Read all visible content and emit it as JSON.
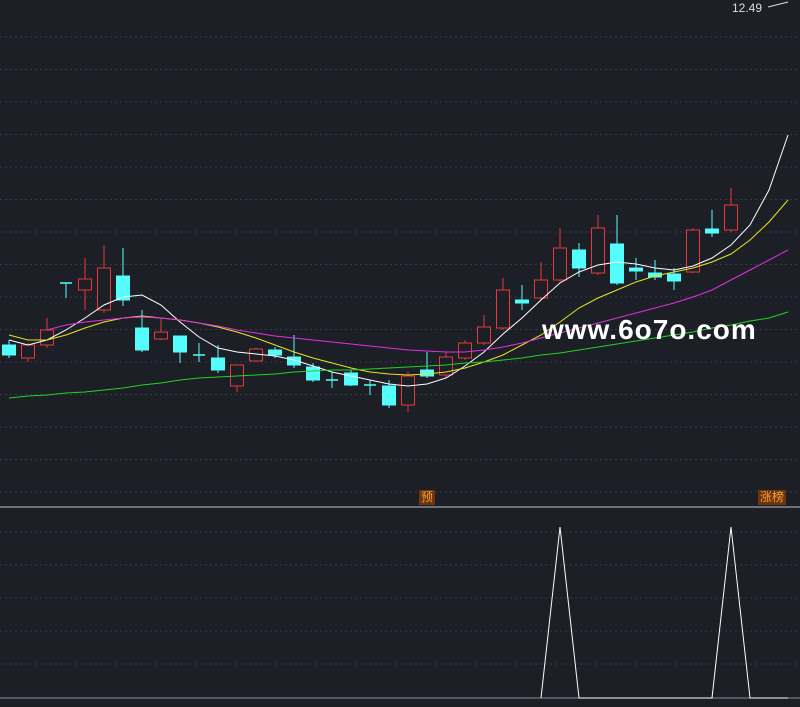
{
  "chart_data": [
    {
      "type": "candlestick",
      "ylim": [
        7.5,
        12.5
      ],
      "up_color": "#e8383b",
      "down_color": "#54fcfc",
      "open": [
        9.05,
        8.92,
        9.05,
        9.67,
        9.6,
        9.4,
        9.74,
        9.22,
        9.11,
        9.14,
        8.95,
        8.92,
        8.64,
        8.89,
        9.0,
        8.93,
        8.83,
        8.7,
        8.77,
        8.65,
        8.64,
        8.45,
        8.8,
        8.75,
        8.92,
        9.07,
        9.22,
        9.5,
        9.52,
        9.7,
        10.0,
        9.77,
        10.06,
        9.82,
        9.77,
        9.76,
        9.78,
        10.21,
        10.2,
        null,
        null,
        null
      ],
      "high": [
        9.1,
        9.07,
        9.32,
        9.67,
        9.92,
        10.05,
        10.02,
        9.4,
        9.32,
        9.14,
        9.07,
        9.05,
        8.85,
        9.02,
        9.03,
        9.15,
        8.87,
        8.78,
        8.8,
        8.7,
        8.7,
        8.78,
        8.98,
        8.98,
        9.1,
        9.35,
        9.72,
        9.65,
        9.88,
        10.22,
        10.07,
        10.35,
        10.35,
        9.92,
        9.9,
        9.82,
        10.22,
        10.4,
        10.62,
        null,
        null,
        null
      ],
      "low": [
        8.92,
        8.88,
        9.02,
        9.52,
        9.4,
        9.37,
        9.44,
        8.98,
        9.1,
        8.87,
        8.88,
        8.77,
        8.58,
        8.88,
        8.92,
        8.82,
        8.68,
        8.62,
        8.64,
        8.55,
        8.42,
        8.38,
        8.72,
        8.72,
        8.9,
        9.05,
        9.2,
        9.4,
        9.5,
        9.68,
        9.73,
        9.75,
        9.65,
        9.7,
        9.7,
        9.6,
        9.77,
        10.13,
        10.18,
        null,
        null,
        null
      ],
      "close": [
        8.95,
        9.05,
        9.2,
        9.67,
        9.71,
        9.82,
        9.5,
        9.0,
        9.18,
        8.98,
        8.95,
        8.8,
        8.85,
        9.01,
        8.95,
        8.85,
        8.7,
        8.7,
        8.65,
        8.65,
        8.45,
        8.74,
        8.74,
        8.93,
        9.07,
        9.23,
        9.6,
        9.47,
        9.7,
        10.02,
        9.82,
        10.22,
        9.67,
        9.79,
        9.73,
        9.69,
        10.2,
        10.17,
        10.45,
        null,
        null,
        null
      ],
      "series": [
        {
          "color": "#ffffff",
          "values": [
            9.1,
            9.05,
            9.1,
            9.2,
            9.32,
            9.45,
            9.53,
            9.55,
            9.45,
            9.28,
            9.13,
            9.02,
            8.98,
            8.96,
            8.94,
            8.9,
            8.84,
            8.78,
            8.74,
            8.7,
            8.66,
            8.64,
            8.66,
            8.72,
            8.84,
            8.98,
            9.16,
            9.32,
            9.5,
            9.67,
            9.78,
            9.85,
            9.88,
            9.86,
            9.82,
            9.8,
            9.84,
            9.92,
            10.05,
            10.25,
            10.6,
            11.15
          ]
        },
        {
          "color": "#e6e61e",
          "values": [
            9.15,
            9.1,
            9.1,
            9.15,
            9.22,
            9.28,
            9.32,
            9.34,
            9.32,
            9.3,
            9.27,
            9.23,
            9.18,
            9.12,
            9.05,
            8.98,
            8.92,
            8.87,
            8.82,
            8.78,
            8.76,
            8.75,
            8.76,
            8.78,
            8.82,
            8.88,
            8.95,
            9.05,
            9.15,
            9.28,
            9.42,
            9.52,
            9.6,
            9.68,
            9.74,
            9.78,
            9.82,
            9.88,
            9.96,
            10.1,
            10.28,
            10.5
          ]
        },
        {
          "color": "#e030e0",
          "values": [
            null,
            null,
            9.2,
            9.25,
            9.28,
            9.3,
            9.32,
            9.33,
            9.32,
            9.3,
            9.27,
            9.24,
            9.2,
            9.17,
            9.14,
            9.12,
            9.1,
            9.08,
            9.06,
            9.04,
            9.02,
            9.0,
            8.99,
            8.98,
            8.98,
            9.0,
            9.03,
            9.07,
            9.12,
            9.17,
            9.22,
            9.27,
            9.32,
            9.37,
            9.42,
            9.47,
            9.53,
            9.6,
            9.7,
            9.8,
            9.9,
            10.0
          ]
        },
        {
          "color": "#22d322",
          "values": [
            8.52,
            8.54,
            8.55,
            8.57,
            8.58,
            8.6,
            8.62,
            8.65,
            8.67,
            8.7,
            8.72,
            8.73,
            8.74,
            8.75,
            8.76,
            8.78,
            8.79,
            8.8,
            8.8,
            8.81,
            8.82,
            8.83,
            8.84,
            8.85,
            8.87,
            8.88,
            8.9,
            8.92,
            8.95,
            8.97,
            9.0,
            9.03,
            9.06,
            9.09,
            9.12,
            9.15,
            9.18,
            9.22,
            9.25,
            9.29,
            9.32,
            9.38
          ]
        }
      ],
      "high_label": 12.49,
      "annotations": [
        "预",
        "涨榜"
      ]
    },
    {
      "type": "line",
      "ylim": [
        0,
        1
      ],
      "series": [
        {
          "color": "#ffffff",
          "values": [
            null,
            null,
            null,
            null,
            null,
            null,
            null,
            null,
            null,
            null,
            null,
            null,
            null,
            null,
            null,
            null,
            null,
            null,
            null,
            null,
            null,
            null,
            null,
            null,
            null,
            null,
            null,
            null,
            0,
            1,
            0,
            0,
            0,
            0,
            0,
            0,
            0,
            0,
            1,
            0,
            0,
            0
          ]
        }
      ]
    }
  ],
  "watermark": "www.6o7o.com"
}
